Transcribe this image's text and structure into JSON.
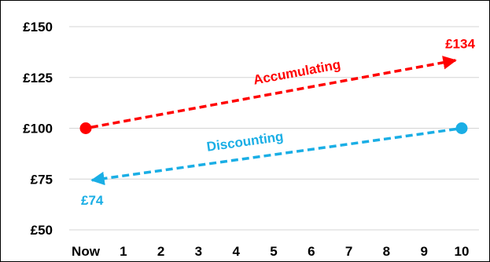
{
  "chart_data": {
    "type": "line",
    "title": "",
    "xlabel": "",
    "ylabel": "",
    "categories": [
      "Now",
      "1",
      "2",
      "3",
      "4",
      "5",
      "6",
      "7",
      "8",
      "9",
      "10"
    ],
    "y_ticks": [
      "£50",
      "£75",
      "£100",
      "£125",
      "£150"
    ],
    "y_tick_values": [
      50,
      75,
      100,
      125,
      150
    ],
    "ylim": [
      50,
      150
    ],
    "grid": "horizontal",
    "legend": "none",
    "series": [
      {
        "name": "Accumulating",
        "color": "#ff0000",
        "line_style": "dashed",
        "start": {
          "x": 0,
          "y": 100
        },
        "end": {
          "x": 10,
          "y": 134
        },
        "end_label": "£134"
      },
      {
        "name": "Discounting",
        "color": "#1aaee5",
        "line_style": "dashed",
        "start": {
          "x": 10,
          "y": 100
        },
        "end": {
          "x": 0,
          "y": 74
        },
        "end_label": "£74"
      }
    ]
  }
}
